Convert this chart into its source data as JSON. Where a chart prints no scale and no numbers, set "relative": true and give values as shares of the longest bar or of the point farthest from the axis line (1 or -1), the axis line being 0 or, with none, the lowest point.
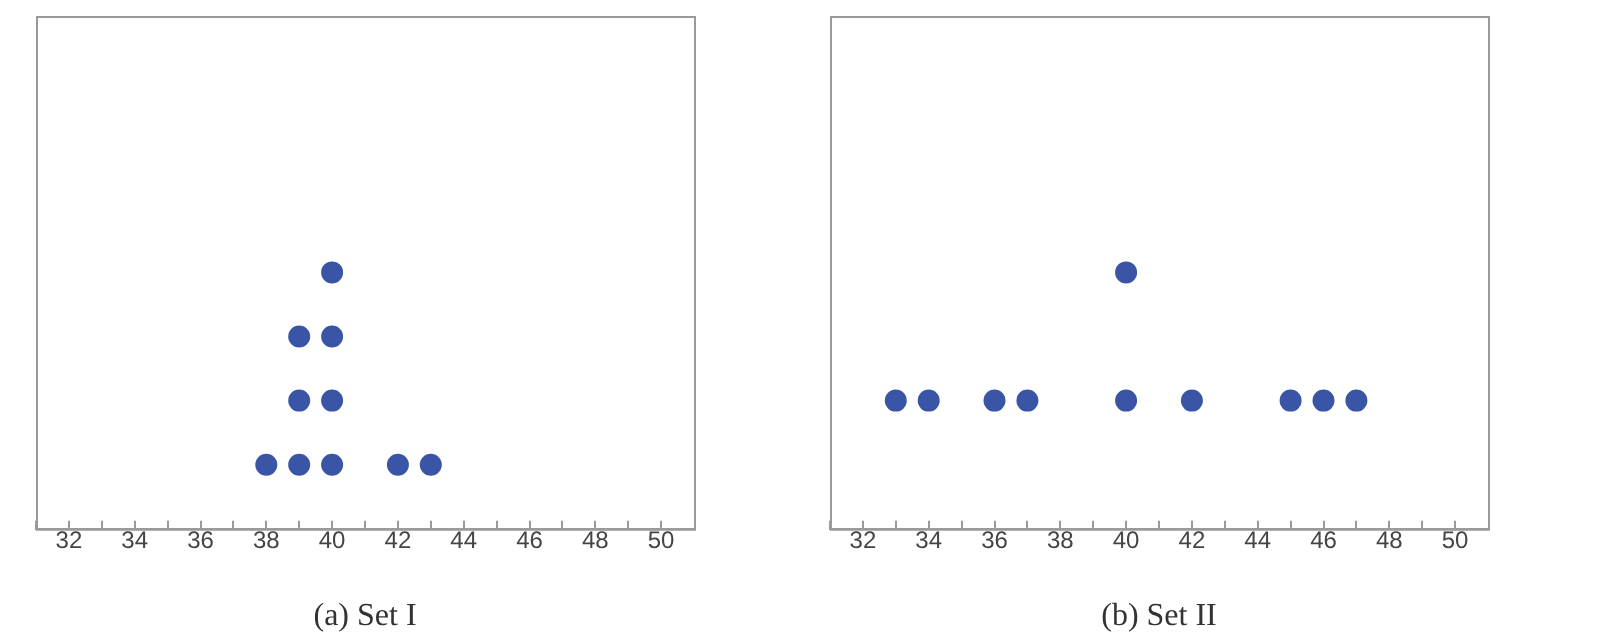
{
  "chart_data": [
    {
      "type": "scatter",
      "title": "(a) Set I",
      "relative": true,
      "marker": "circle",
      "xlim": [
        31,
        51
      ],
      "xticks": [
        {
          "value": 31,
          "label": null
        },
        32,
        {
          "value": 33,
          "label": null
        },
        34,
        {
          "value": 35,
          "label": null
        },
        36,
        {
          "value": 37,
          "label": null
        },
        38,
        {
          "value": 39,
          "label": null
        },
        40,
        {
          "value": 41,
          "label": null
        },
        42,
        {
          "value": 43,
          "label": null
        },
        44,
        {
          "value": 45,
          "label": null
        },
        46,
        {
          "value": 47,
          "label": null
        },
        48,
        {
          "value": 49,
          "label": null
        },
        50
      ],
      "series": [
        {
          "color": "#3a55a6",
          "x": [
            38,
            39,
            39,
            39,
            40,
            40,
            40,
            40,
            42,
            43
          ],
          "values": [
            0.25,
            0.25,
            0.5,
            0.75,
            0.25,
            0.5,
            0.75,
            1,
            0.25,
            0.25
          ]
        }
      ]
    },
    {
      "type": "scatter",
      "title": "(b) Set II",
      "relative": true,
      "marker": "circle",
      "xlim": [
        31,
        51
      ],
      "xticks": [
        {
          "value": 31,
          "label": null
        },
        32,
        {
          "value": 33,
          "label": null
        },
        34,
        {
          "value": 35,
          "label": null
        },
        36,
        {
          "value": 37,
          "label": null
        },
        38,
        {
          "value": 39,
          "label": null
        },
        40,
        {
          "value": 41,
          "label": null
        },
        42,
        {
          "value": 43,
          "label": null
        },
        44,
        {
          "value": 45,
          "label": null
        },
        46,
        {
          "value": 47,
          "label": null
        },
        48,
        {
          "value": 49,
          "label": null
        },
        50
      ],
      "series": [
        {
          "color": "#3a55a6",
          "x": [
            33,
            34,
            36,
            37,
            40,
            40,
            42,
            45,
            46,
            47
          ],
          "values": [
            0.5,
            0.5,
            0.5,
            0.5,
            0.5,
            1,
            0.5,
            0.5,
            0.5,
            0.5
          ]
        }
      ]
    }
  ]
}
